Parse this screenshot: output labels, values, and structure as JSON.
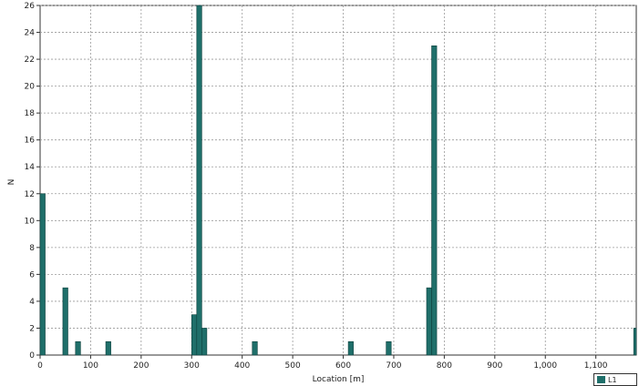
{
  "chart_data": {
    "type": "bar",
    "xlabel": "Location [m]",
    "ylabel": "N",
    "xlim": [
      0,
      1180
    ],
    "ylim": [
      0,
      26
    ],
    "x_ticks": [
      0,
      100,
      200,
      300,
      400,
      500,
      600,
      700,
      800,
      900,
      1000,
      1100
    ],
    "x_tick_labels": [
      "0",
      "100",
      "200",
      "300",
      "400",
      "500",
      "600",
      "700",
      "800",
      "900",
      "1,000",
      "1,100"
    ],
    "y_ticks": [
      0,
      2,
      4,
      6,
      8,
      10,
      12,
      14,
      16,
      18,
      20,
      22,
      24,
      26
    ],
    "grid": true,
    "bar_color": "#1f6f6a",
    "bin_width": 10,
    "series": [
      {
        "name": "L1",
        "x": [
          0,
          45,
          70,
          130,
          300,
          310,
          320,
          420,
          610,
          685,
          765,
          775,
          1175
        ],
        "values": [
          12,
          5,
          1,
          1,
          3,
          26,
          2,
          1,
          1,
          1,
          5,
          23,
          2
        ]
      }
    ],
    "legend": "bottom-right"
  }
}
